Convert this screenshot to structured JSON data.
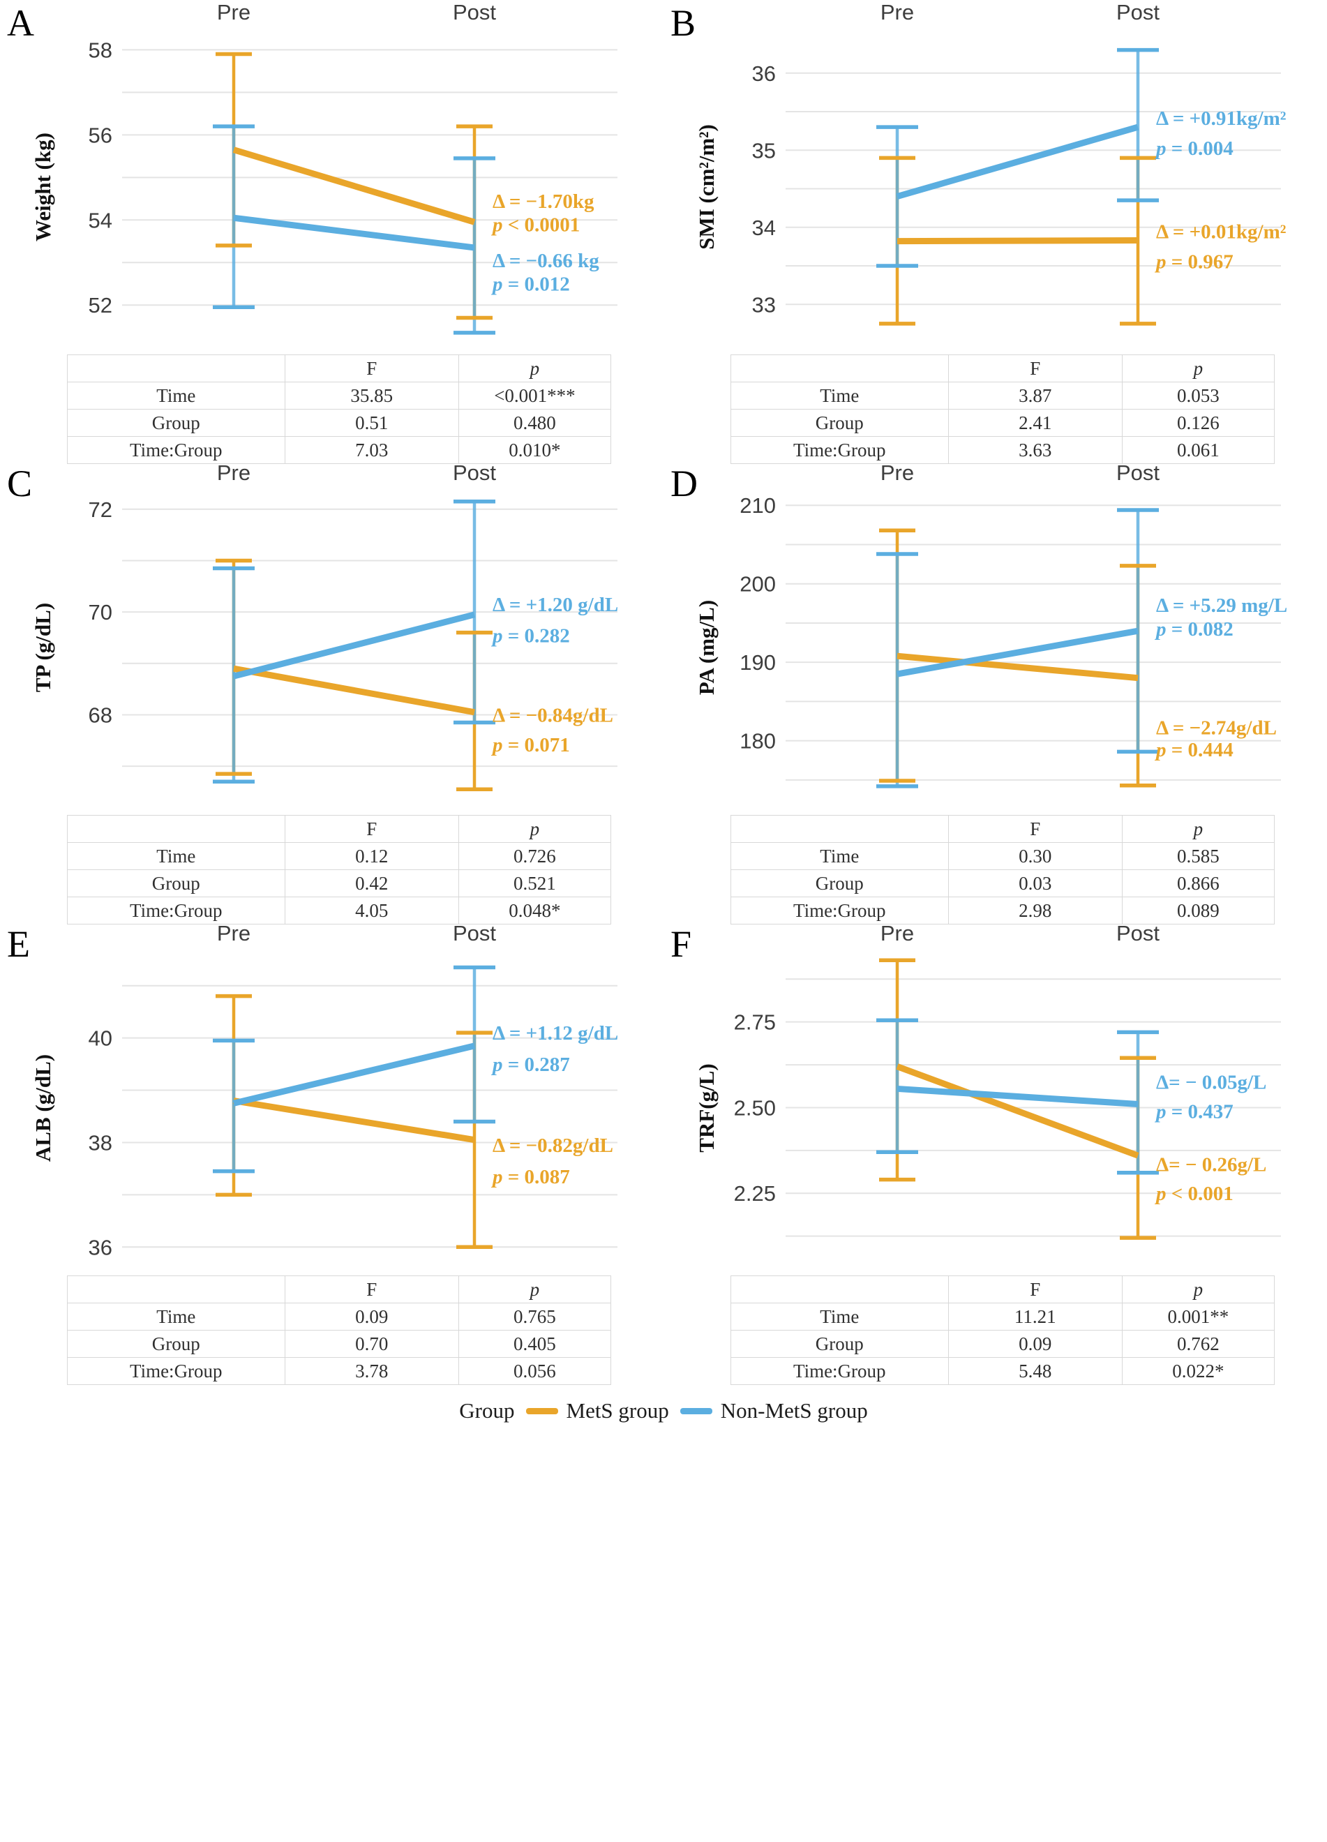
{
  "colors": {
    "mets": "#E9A52A",
    "nonmets": "#5BAEE0",
    "grid": "#E4E4E4",
    "axis_text": "#3D3D3D",
    "table_border": "#D8D8D8",
    "table_text": "#303030"
  },
  "legend": {
    "title": "Group",
    "items": [
      {
        "key": "mets",
        "label": "MetS group"
      },
      {
        "key": "nonmets",
        "label": "Non-MetS group"
      }
    ]
  },
  "chart_data": [
    {
      "type": "line",
      "letter": "A",
      "ylabel": "Weight (kg)",
      "categories": [
        "Pre",
        "Post"
      ],
      "ylim": [
        51.2,
        58.45
      ],
      "gridlines": [
        52,
        53,
        54,
        55,
        56,
        57,
        58
      ],
      "yticks": [
        {
          "v": 52,
          "label": "52"
        },
        {
          "v": 54,
          "label": "54"
        },
        {
          "v": 56,
          "label": "56"
        },
        {
          "v": 58,
          "label": "58"
        }
      ],
      "series": [
        {
          "name": "MetS group",
          "key": "mets",
          "values": [
            55.65,
            53.95
          ],
          "err": [
            [
              53.4,
              57.9
            ],
            [
              51.7,
              56.2
            ]
          ]
        },
        {
          "name": "Non-MetS group",
          "key": "nonmets",
          "values": [
            54.05,
            53.35
          ],
          "err": [
            [
              51.95,
              56.2
            ],
            [
              51.35,
              55.45
            ]
          ]
        }
      ],
      "annotations": [
        {
          "key": "mets",
          "lines": [
            "Δ = −1.70kg",
            "p < 0.0001"
          ],
          "y": [
            54.45,
            53.9
          ]
        },
        {
          "key": "nonmets",
          "lines": [
            "Δ = −0.66 kg",
            "p = 0.012"
          ],
          "y": [
            53.05,
            52.5
          ]
        }
      ],
      "stats_table": {
        "headers": [
          "",
          "F",
          "p"
        ],
        "rows": [
          [
            "Time",
            "35.85",
            "<0.001***"
          ],
          [
            "Group",
            "0.51",
            "0.480"
          ],
          [
            "Time:Group",
            "7.03",
            "0.010*"
          ]
        ]
      }
    },
    {
      "type": "line",
      "letter": "B",
      "ylabel": "SMI (cm²/m²)",
      "categories": [
        "Pre",
        "Post"
      ],
      "ylim": [
        32.55,
        36.55
      ],
      "gridlines": [
        33,
        33.5,
        34,
        34.5,
        35,
        35.5,
        36
      ],
      "yticks": [
        {
          "v": 33,
          "label": "33"
        },
        {
          "v": 34,
          "label": "34"
        },
        {
          "v": 35,
          "label": "35"
        },
        {
          "v": 36,
          "label": "36"
        }
      ],
      "series": [
        {
          "name": "MetS group",
          "key": "mets",
          "values": [
            33.82,
            33.83
          ],
          "err": [
            [
              32.75,
              34.9
            ],
            [
              32.75,
              34.9
            ]
          ]
        },
        {
          "name": "Non-MetS group",
          "key": "nonmets",
          "values": [
            34.4,
            35.3
          ],
          "err": [
            [
              33.5,
              35.3
            ],
            [
              34.35,
              36.3
            ]
          ]
        }
      ],
      "annotations": [
        {
          "key": "nonmets",
          "lines": [
            "Δ = +0.91kg/m²",
            "p = 0.004"
          ],
          "y": [
            35.42,
            35.03
          ]
        },
        {
          "key": "mets",
          "lines": [
            "Δ = +0.01kg/m²",
            "p = 0.967"
          ],
          "y": [
            33.95,
            33.56
          ]
        }
      ],
      "stats_table": {
        "headers": [
          "",
          "F",
          "p"
        ],
        "rows": [
          [
            "Time",
            "3.87",
            "0.053"
          ],
          [
            "Group",
            "2.41",
            "0.126"
          ],
          [
            "Time:Group",
            "3.63",
            "0.061"
          ]
        ]
      }
    },
    {
      "type": "line",
      "letter": "C",
      "ylabel": "TP (g/dL)",
      "categories": [
        "Pre",
        "Post"
      ],
      "ylim": [
        66.35,
        72.35
      ],
      "gridlines": [
        67,
        68,
        69,
        70,
        71,
        72
      ],
      "yticks": [
        {
          "v": 68,
          "label": "68"
        },
        {
          "v": 70,
          "label": "70"
        },
        {
          "v": 72,
          "label": "72"
        }
      ],
      "series": [
        {
          "name": "MetS group",
          "key": "mets",
          "values": [
            68.9,
            68.05
          ],
          "err": [
            [
              66.85,
              71.0
            ],
            [
              66.55,
              69.6
            ]
          ]
        },
        {
          "name": "Non-MetS group",
          "key": "nonmets",
          "values": [
            68.75,
            69.95
          ],
          "err": [
            [
              66.7,
              70.85
            ],
            [
              67.85,
              72.15
            ]
          ]
        }
      ],
      "annotations": [
        {
          "key": "nonmets",
          "lines": [
            "Δ = +1.20 g/dL",
            "p = 0.282"
          ],
          "y": [
            70.15,
            69.55
          ]
        },
        {
          "key": "mets",
          "lines": [
            "Δ = −0.84g/dL",
            "p = 0.071"
          ],
          "y": [
            68.0,
            67.42
          ]
        }
      ],
      "stats_table": {
        "headers": [
          "",
          "F",
          "p"
        ],
        "rows": [
          [
            "Time",
            "0.12",
            "0.726"
          ],
          [
            "Group",
            "0.42",
            "0.521"
          ],
          [
            "Time:Group",
            "4.05",
            "0.048*"
          ]
        ]
      }
    },
    {
      "type": "line",
      "letter": "D",
      "ylabel": "PA (mg/L)",
      "categories": [
        "Pre",
        "Post"
      ],
      "ylim": [
        172.5,
        211.8
      ],
      "gridlines": [
        175,
        180,
        185,
        190,
        195,
        200,
        205,
        210
      ],
      "yticks": [
        {
          "v": 180,
          "label": "180"
        },
        {
          "v": 190,
          "label": "190"
        },
        {
          "v": 200,
          "label": "200"
        },
        {
          "v": 210,
          "label": "210"
        }
      ],
      "series": [
        {
          "name": "MetS group",
          "key": "mets",
          "values": [
            190.8,
            188.0
          ],
          "err": [
            [
              174.9,
              206.8
            ],
            [
              174.3,
              202.3
            ]
          ]
        },
        {
          "name": "Non-MetS group",
          "key": "nonmets",
          "values": [
            188.5,
            194.0
          ],
          "err": [
            [
              174.2,
              203.8
            ],
            [
              178.6,
              209.4
            ]
          ]
        }
      ],
      "annotations": [
        {
          "key": "nonmets",
          "lines": [
            "Δ = +5.29 mg/L",
            "p = 0.082"
          ],
          "y": [
            197.3,
            194.3
          ]
        },
        {
          "key": "mets",
          "lines": [
            "Δ = −2.74g/dL",
            "p = 0.444"
          ],
          "y": [
            181.7,
            178.9
          ]
        }
      ],
      "stats_table": {
        "headers": [
          "",
          "F",
          "p"
        ],
        "rows": [
          [
            "Time",
            "0.30",
            "0.585"
          ],
          [
            "Group",
            "0.03",
            "0.866"
          ],
          [
            "Time:Group",
            "2.98",
            "0.089"
          ]
        ]
      }
    },
    {
      "type": "line",
      "letter": "E",
      "ylabel": "ALB (g/dL)",
      "categories": [
        "Pre",
        "Post"
      ],
      "ylim": [
        35.75,
        41.65
      ],
      "gridlines": [
        36,
        37,
        38,
        39,
        40,
        41
      ],
      "yticks": [
        {
          "v": 36,
          "label": "36"
        },
        {
          "v": 38,
          "label": "38"
        },
        {
          "v": 40,
          "label": "40"
        }
      ],
      "series": [
        {
          "name": "MetS group",
          "key": "mets",
          "values": [
            38.8,
            38.05
          ],
          "err": [
            [
              37.0,
              40.8
            ],
            [
              36.0,
              40.1
            ]
          ]
        },
        {
          "name": "Non-MetS group",
          "key": "nonmets",
          "values": [
            38.75,
            39.85
          ],
          "err": [
            [
              37.45,
              39.95
            ],
            [
              38.4,
              41.35
            ]
          ]
        }
      ],
      "annotations": [
        {
          "key": "nonmets",
          "lines": [
            "Δ = +1.12 g/dL",
            "p = 0.287"
          ],
          "y": [
            40.1,
            39.5
          ]
        },
        {
          "key": "mets",
          "lines": [
            "Δ = −0.82g/dL",
            "p = 0.087"
          ],
          "y": [
            37.95,
            37.35
          ]
        }
      ],
      "stats_table": {
        "headers": [
          "",
          "F",
          "p"
        ],
        "rows": [
          [
            "Time",
            "0.09",
            "0.765"
          ],
          [
            "Group",
            "0.70",
            "0.405"
          ],
          [
            "Time:Group",
            "3.78",
            "0.056"
          ]
        ]
      }
    },
    {
      "type": "line",
      "letter": "F",
      "ylabel": "TRF(g/L)",
      "categories": [
        "Pre",
        "Post"
      ],
      "ylim": [
        2.055,
        2.955
      ],
      "gridlines": [
        2.125,
        2.25,
        2.375,
        2.5,
        2.625,
        2.75,
        2.875
      ],
      "yticks": [
        {
          "v": 2.25,
          "label": "2.25"
        },
        {
          "v": 2.5,
          "label": "2.50"
        },
        {
          "v": 2.75,
          "label": "2.75"
        }
      ],
      "series": [
        {
          "name": "MetS group",
          "key": "mets",
          "values": [
            2.62,
            2.36
          ],
          "err": [
            [
              2.29,
              2.93
            ],
            [
              2.12,
              2.645
            ]
          ]
        },
        {
          "name": "Non-MetS group",
          "key": "nonmets",
          "values": [
            2.555,
            2.51
          ],
          "err": [
            [
              2.37,
              2.755
            ],
            [
              2.31,
              2.72
            ]
          ]
        }
      ],
      "annotations": [
        {
          "key": "nonmets",
          "lines": [
            "Δ= − 0.05g/L",
            "p = 0.437"
          ],
          "y": [
            2.575,
            2.49
          ]
        },
        {
          "key": "mets",
          "lines": [
            "Δ= − 0.26g/L",
            "p < 0.001"
          ],
          "y": [
            2.335,
            2.25
          ]
        }
      ],
      "stats_table": {
        "headers": [
          "",
          "F",
          "p"
        ],
        "rows": [
          [
            "Time",
            "11.21",
            "0.001**"
          ],
          [
            "Group",
            "0.09",
            "0.762"
          ],
          [
            "Time:Group",
            "5.48",
            "0.022*"
          ]
        ]
      }
    }
  ]
}
